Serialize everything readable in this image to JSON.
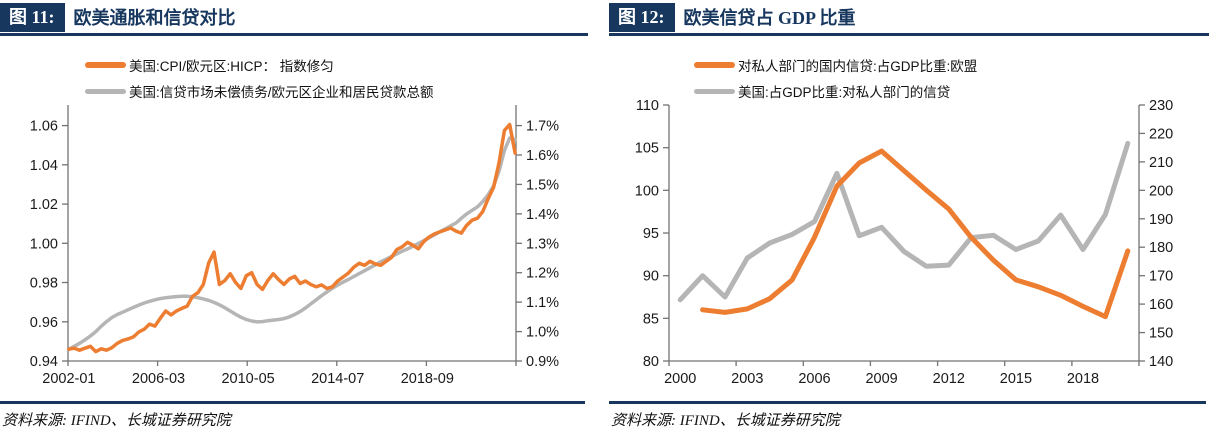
{
  "colors": {
    "navy": "#17375E",
    "orange": "#ED7D31",
    "gray": "#B5B5B5",
    "axis": "#737373",
    "text": "#1a1a1a"
  },
  "chart_data": [
    {
      "type": "line",
      "panel_label": "图 11:",
      "title": "欧美通胀和信贷对比",
      "source": "资料来源: IFIND、长城证券研究院",
      "legend_position": "top",
      "grid": false,
      "x_axis": {
        "n": 250,
        "tick_every": 50,
        "unit": "month",
        "labels": [
          {
            "i": 0,
            "t": "2002-01"
          },
          {
            "i": 50,
            "t": "2006-03"
          },
          {
            "i": 100,
            "t": "2010-05"
          },
          {
            "i": 150,
            "t": "2014-07"
          },
          {
            "i": 200,
            "t": "2018-09"
          }
        ]
      },
      "left_axis": {
        "min": 0.94,
        "max": 1.0705,
        "ticks": [
          {
            "v": 0.94,
            "t": "0.94"
          },
          {
            "v": 0.96,
            "t": "0.96"
          },
          {
            "v": 0.98,
            "t": "0.98"
          },
          {
            "v": 1.0,
            "t": "1.00"
          },
          {
            "v": 1.02,
            "t": "1.02"
          },
          {
            "v": 1.04,
            "t": "1.04"
          },
          {
            "v": 1.06,
            "t": "1.06"
          }
        ]
      },
      "right_axis": {
        "min": 0.9,
        "max": 1.77,
        "ticks": [
          {
            "v": 0.9,
            "t": "0.9%"
          },
          {
            "v": 1.0,
            "t": "1.0%"
          },
          {
            "v": 1.1,
            "t": "1.1%"
          },
          {
            "v": 1.2,
            "t": "1.2%"
          },
          {
            "v": 1.3,
            "t": "1.3%"
          },
          {
            "v": 1.4,
            "t": "1.4%"
          },
          {
            "v": 1.5,
            "t": "1.5%"
          },
          {
            "v": 1.6,
            "t": "1.6%"
          },
          {
            "v": 1.7,
            "t": "1.7%"
          }
        ]
      },
      "series": [
        {
          "label": "美国:CPI/欧元区:HICP： 指数修匀",
          "color": "#ED7D31",
          "axis": "left",
          "start": 0,
          "step": 3,
          "width": 3.5,
          "values": [
            0.946,
            0.9465,
            0.9455,
            0.9465,
            0.9475,
            0.9448,
            0.9462,
            0.9455,
            0.9468,
            0.949,
            0.9505,
            0.9512,
            0.9523,
            0.9548,
            0.9562,
            0.9588,
            0.9578,
            0.9618,
            0.9655,
            0.9635,
            0.9655,
            0.9668,
            0.968,
            0.973,
            0.9748,
            0.979,
            0.99,
            0.9955,
            0.979,
            0.981,
            0.9845,
            0.98,
            0.977,
            0.9835,
            0.985,
            0.979,
            0.9765,
            0.981,
            0.9845,
            0.9815,
            0.979,
            0.9818,
            0.9832,
            0.9795,
            0.9808,
            0.979,
            0.9778,
            0.9788,
            0.977,
            0.9778,
            0.9808,
            0.9828,
            0.9848,
            0.9878,
            0.9898,
            0.9888,
            0.9908,
            0.9895,
            0.9888,
            0.9908,
            0.9928,
            0.9968,
            0.9982,
            1.0005,
            0.999,
            0.9972,
            1.0008,
            1.0032,
            1.0048,
            1.0058,
            1.0068,
            1.0078,
            1.0062,
            1.0052,
            1.0092,
            1.0118,
            1.0128,
            1.0162,
            1.0228,
            1.0285,
            1.041,
            1.0575,
            1.0605,
            1.046
          ]
        },
        {
          "label": "美国:信贷市场未偿债务/欧元区企业和居民贷款总额",
          "color": "#B5B5B5",
          "axis": "right",
          "start": 0,
          "step": 3,
          "width": 3.5,
          "values": [
            0.94,
            0.95,
            0.96,
            0.972,
            0.985,
            1.0,
            1.018,
            1.034,
            1.048,
            1.058,
            1.066,
            1.074,
            1.082,
            1.09,
            1.097,
            1.103,
            1.108,
            1.112,
            1.115,
            1.117,
            1.119,
            1.12,
            1.12,
            1.118,
            1.115,
            1.111,
            1.106,
            1.099,
            1.091,
            1.081,
            1.07,
            1.059,
            1.049,
            1.041,
            1.036,
            1.033,
            1.034,
            1.037,
            1.039,
            1.041,
            1.044,
            1.05,
            1.058,
            1.068,
            1.08,
            1.094,
            1.108,
            1.122,
            1.135,
            1.147,
            1.158,
            1.168,
            1.177,
            1.187,
            1.197,
            1.207,
            1.217,
            1.227,
            1.237,
            1.246,
            1.255,
            1.264,
            1.273,
            1.281,
            1.29,
            1.299,
            1.309,
            1.319,
            1.329,
            1.339,
            1.349,
            1.359,
            1.369,
            1.385,
            1.4,
            1.412,
            1.424,
            1.442,
            1.465,
            1.495,
            1.545,
            1.615,
            1.658,
            1.652
          ]
        }
      ]
    },
    {
      "type": "line",
      "panel_label": "图 12:",
      "title": "欧美信贷占 GDP 比重",
      "source": "资料来源: IFIND、长城证券研究院",
      "legend_position": "top",
      "grid": false,
      "x_axis": {
        "n": 21,
        "tick_every": 3,
        "unit": "year",
        "labels": [
          {
            "i": 0,
            "t": "2000"
          },
          {
            "i": 3,
            "t": "2003"
          },
          {
            "i": 6,
            "t": "2006"
          },
          {
            "i": 9,
            "t": "2009"
          },
          {
            "i": 12,
            "t": "2012"
          },
          {
            "i": 15,
            "t": "2015"
          },
          {
            "i": 18,
            "t": "2018"
          }
        ]
      },
      "left_axis": {
        "min": 80,
        "max": 110,
        "ticks": [
          {
            "v": 80,
            "t": "80"
          },
          {
            "v": 85,
            "t": "85"
          },
          {
            "v": 90,
            "t": "90"
          },
          {
            "v": 95,
            "t": "95"
          },
          {
            "v": 100,
            "t": "100"
          },
          {
            "v": 105,
            "t": "105"
          },
          {
            "v": 110,
            "t": "110"
          }
        ]
      },
      "right_axis": {
        "min": 140,
        "max": 230,
        "ticks": [
          {
            "v": 140,
            "t": "140"
          },
          {
            "v": 150,
            "t": "150"
          },
          {
            "v": 160,
            "t": "160"
          },
          {
            "v": 170,
            "t": "170"
          },
          {
            "v": 180,
            "t": "180"
          },
          {
            "v": 190,
            "t": "190"
          },
          {
            "v": 200,
            "t": "200"
          },
          {
            "v": 210,
            "t": "210"
          },
          {
            "v": 220,
            "t": "220"
          },
          {
            "v": 230,
            "t": "230"
          }
        ]
      },
      "series": [
        {
          "label": "对私人部门的国内信贷:占GDP比重:欧盟",
          "color": "#ED7D31",
          "axis": "left",
          "start": 1,
          "step": 1,
          "width": 5,
          "values": [
            86.0,
            85.7,
            86.1,
            87.3,
            89.5,
            94.5,
            100.5,
            103.2,
            104.6,
            102.3,
            100.0,
            97.8,
            94.5,
            91.8,
            89.5,
            88.7,
            87.7,
            86.4,
            85.2,
            92.9
          ]
        },
        {
          "label": "美国:占GDP比重:对私人部门的信贷",
          "color": "#B5B5B5",
          "axis": "right",
          "start": 0,
          "step": 1,
          "width": 5,
          "values": [
            161.5,
            170,
            162.5,
            176.2,
            181.5,
            184.5,
            189,
            206,
            184,
            187,
            178.5,
            173.3,
            173.7,
            183.4,
            184.2,
            179.2,
            182.2,
            191.3,
            179.2,
            191.5,
            216.5
          ]
        }
      ]
    }
  ]
}
